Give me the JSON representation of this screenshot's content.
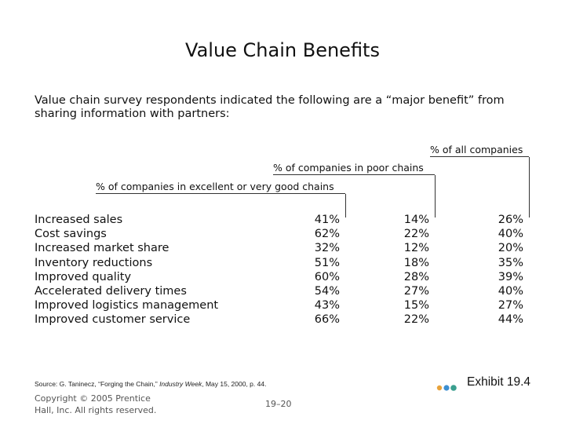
{
  "title": "Value Chain Benefits",
  "intro": "Value chain survey respondents indicated the following are a “major benefit” from sharing information with partners:",
  "headers": {
    "all": "% of all companies",
    "poor": "% of companies in poor chains",
    "excellent": "% of companies in excellent or very good chains"
  },
  "rows": [
    {
      "label": "Increased sales",
      "excellent": "41%",
      "poor": "14%",
      "all": "26%"
    },
    {
      "label": "Cost savings",
      "excellent": "62%",
      "poor": "22%",
      "all": "40%"
    },
    {
      "label": "Increased market share",
      "excellent": "32%",
      "poor": "12%",
      "all": "20%"
    },
    {
      "label": "Inventory reductions",
      "excellent": "51%",
      "poor": "18%",
      "all": "35%"
    },
    {
      "label": "Improved quality",
      "excellent": "60%",
      "poor": "28%",
      "all": "39%"
    },
    {
      "label": "Accelerated delivery times",
      "excellent": "54%",
      "poor": "27%",
      "all": "40%"
    },
    {
      "label": "Improved logistics management",
      "excellent": "43%",
      "poor": "15%",
      "all": "27%"
    },
    {
      "label": "Improved customer service",
      "excellent": "66%",
      "poor": "22%",
      "all": "44%"
    }
  ],
  "source": {
    "prefix": "Source: G. Taninecz, “Forging the Chain,” ",
    "journal": "Industry Week",
    "suffix": ", May 15, 2000, p. 44."
  },
  "exhibit": "Exhibit 19.4",
  "copyright": "Copyright © 2005 Prentice Hall, Inc. All rights reserved.",
  "page_number": "19–20",
  "colors": {
    "dot_orange": "#e8a33c",
    "dot_blue": "#3d8fd1",
    "dot_teal": "#3a9f8f"
  }
}
